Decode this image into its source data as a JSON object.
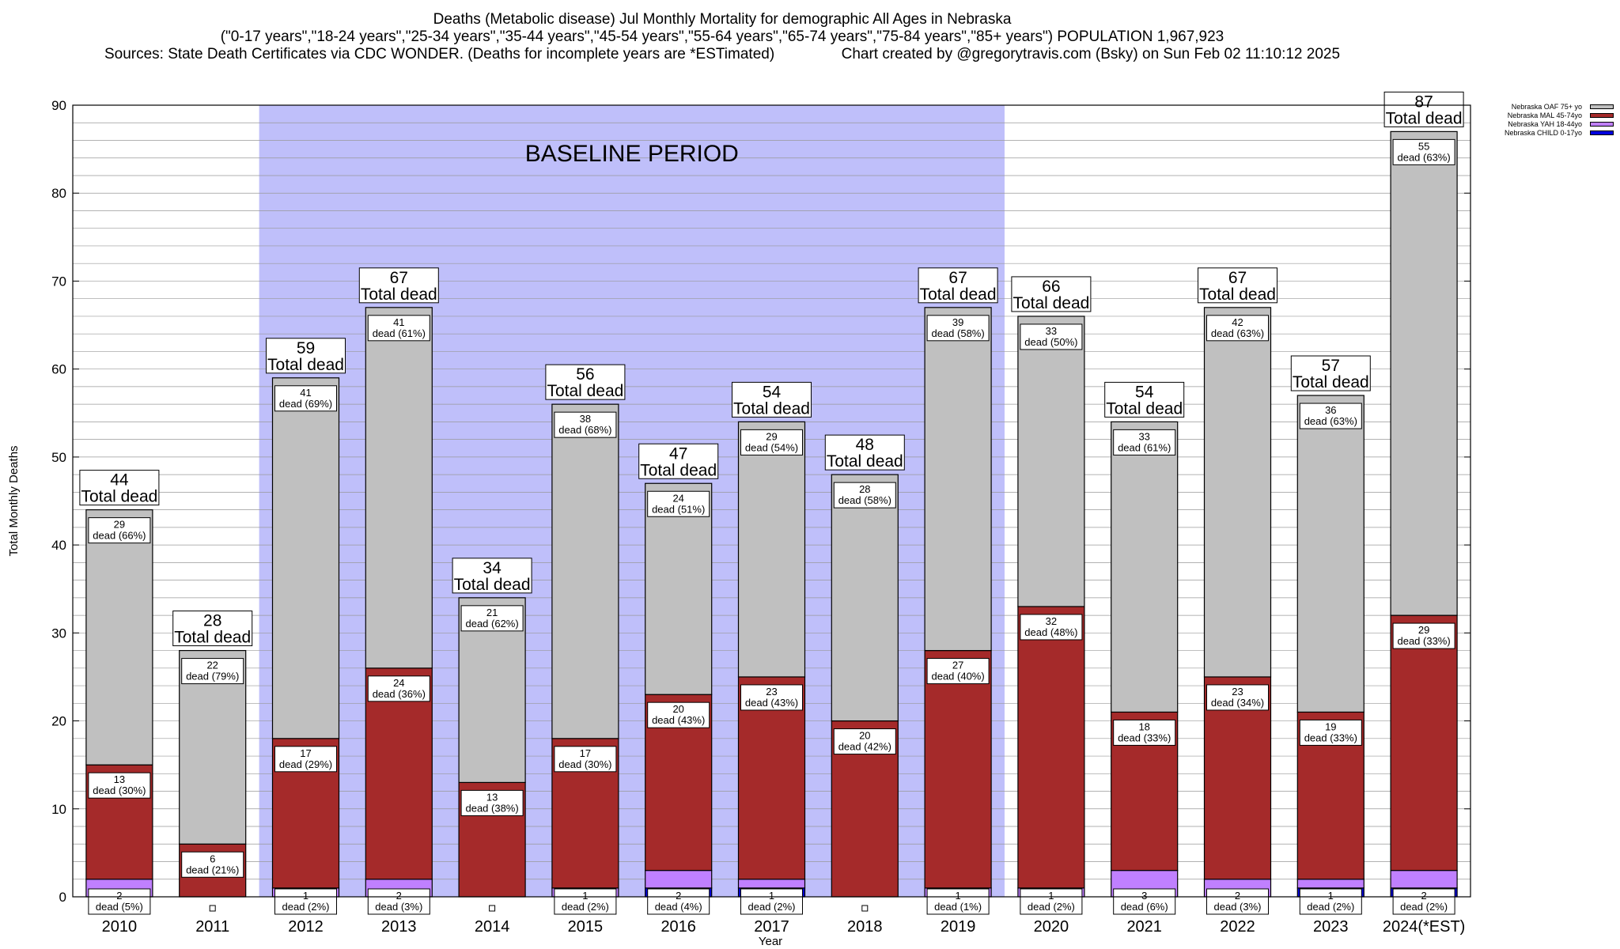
{
  "header": {
    "line1": "Deaths (Metabolic disease) Jul Monthly Mortality for demographic All Ages in Nebraska",
    "line2": "(\"0-17 years\",\"18-24 years\",\"25-34 years\",\"35-44 years\",\"45-54 years\",\"55-64 years\",\"65-74 years\",\"75-84 years\",\"85+ years\") POPULATION 1,967,923",
    "line3": "Sources: State Death Certificates via CDC WONDER. (Deaths for incomplete years are *ESTimated)                Chart created by @gregorytravis.com (Bsky) on Sun Feb 02 11:10:12 2025"
  },
  "colors": {
    "baseline": "#bfbffa",
    "oaf": "#c0c0c0",
    "mal": "#a52a2a",
    "yah": "#c080ff",
    "child": "#0000dd"
  },
  "chart_data": {
    "type": "bar",
    "stacked": true,
    "xlabel": "Year",
    "ylabel": "Total Monthly Deaths",
    "ylim": [
      0,
      90
    ],
    "yticks": [
      0,
      10,
      20,
      30,
      40,
      50,
      60,
      70,
      80,
      90
    ],
    "grid": true,
    "legend_position": "top-right",
    "annotation": "BASELINE PERIOD",
    "baseline_years": [
      "2012",
      "2019"
    ],
    "total_label": "Total dead",
    "categories": [
      "2010",
      "2011",
      "2012",
      "2013",
      "2014",
      "2015",
      "2016",
      "2017",
      "2018",
      "2019",
      "2020",
      "2021",
      "2022",
      "2023",
      "2024(*EST)"
    ],
    "totals": [
      44,
      28,
      59,
      67,
      34,
      56,
      47,
      54,
      48,
      67,
      66,
      54,
      67,
      57,
      87
    ],
    "series": [
      {
        "name": "Nebraska CHILD 0-17yo",
        "key": "child",
        "values": [
          0,
          0,
          0,
          0,
          0,
          0,
          1,
          1,
          0,
          0,
          0,
          0,
          0,
          1,
          1
        ]
      },
      {
        "name": "Nebraska YAH 18-44yo",
        "key": "yah",
        "values": [
          2,
          0,
          1,
          2,
          0,
          1,
          2,
          1,
          0,
          1,
          1,
          3,
          2,
          1,
          2
        ]
      },
      {
        "name": "Nebraska MAL 45-74yo",
        "key": "mal",
        "values": [
          13,
          6,
          17,
          24,
          13,
          17,
          20,
          23,
          20,
          27,
          32,
          18,
          23,
          19,
          29
        ]
      },
      {
        "name": "Nebraska OAF 75+ yo",
        "key": "oaf",
        "values": [
          29,
          22,
          41,
          41,
          21,
          38,
          24,
          29,
          28,
          39,
          33,
          33,
          42,
          36,
          55
        ]
      }
    ],
    "segment_labels": {
      "yah": [
        "2\ndead (5%)",
        "",
        "1\ndead (2%)",
        "2\ndead (3%)",
        "",
        "1\ndead (2%)",
        "2\ndead (4%)",
        "1\ndead (2%)",
        "",
        "1\ndead (1%)",
        "1\ndead (2%)",
        "3\ndead (6%)",
        "2\ndead (3%)",
        "1\ndead (2%)",
        "2\ndead (2%)"
      ],
      "mal": [
        "13\ndead (30%)",
        "6\ndead (21%)",
        "17\ndead (29%)",
        "24\ndead (36%)",
        "13\ndead (38%)",
        "17\ndead (30%)",
        "20\ndead (43%)",
        "23\ndead (43%)",
        "20\ndead (42%)",
        "27\ndead (40%)",
        "32\ndead (48%)",
        "18\ndead (33%)",
        "23\ndead (34%)",
        "19\ndead (33%)",
        "29\ndead (33%)"
      ],
      "oaf": [
        "29\ndead (66%)",
        "22\ndead (79%)",
        "41\ndead (69%)",
        "41\ndead (61%)",
        "21\ndead (62%)",
        "38\ndead (68%)",
        "24\ndead (51%)",
        "29\ndead (54%)",
        "28\ndead (58%)",
        "39\ndead (58%)",
        "33\ndead (50%)",
        "33\ndead (61%)",
        "42\ndead (63%)",
        "36\ndead (63%)",
        "55\ndead (63%)"
      ]
    }
  }
}
